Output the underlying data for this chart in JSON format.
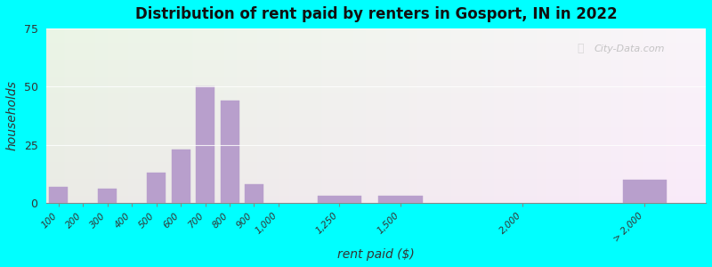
{
  "title": "Distribution of rent paid by renters in Gosport, IN in 2022",
  "xlabel": "rent paid ($)",
  "ylabel": "households",
  "bar_color": "#b89fcc",
  "background_outer": "#00ffff",
  "ylim": [
    0,
    75
  ],
  "yticks": [
    0,
    25,
    50,
    75
  ],
  "tick_labels": [
    "100",
    "200",
    "300",
    "400",
    "500",
    "600",
    "700",
    "800",
    "900",
    "1,000",
    "1,250",
    "1,500",
    "2,000",
    "> 2,000"
  ],
  "x_positions": [
    100,
    200,
    300,
    400,
    500,
    600,
    700,
    800,
    900,
    1000,
    1250,
    1500,
    2000,
    2500
  ],
  "bar_width": [
    85,
    85,
    85,
    85,
    85,
    85,
    85,
    85,
    85,
    85,
    200,
    200,
    200,
    200
  ],
  "values": [
    7,
    0,
    6,
    0,
    13,
    23,
    50,
    44,
    8,
    0,
    3,
    3,
    0,
    10
  ],
  "watermark": "City-Data.com",
  "xlim": [
    50,
    2750
  ]
}
